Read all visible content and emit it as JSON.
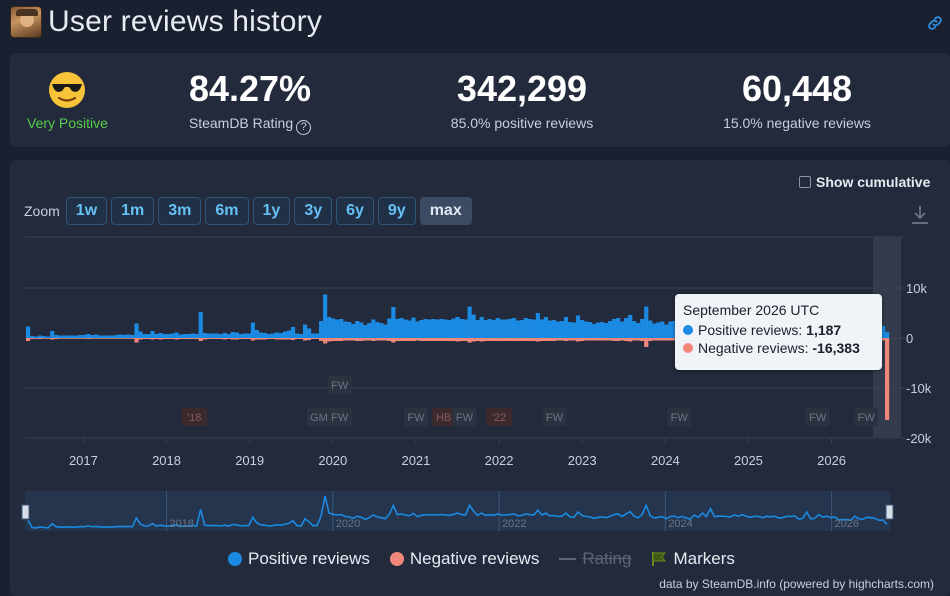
{
  "header": {
    "title": "User reviews history"
  },
  "stats": {
    "rating_word": "Very Positive",
    "rating_pct": "84.27%",
    "rating_label": "SteamDB Rating",
    "positive_count": "342,299",
    "positive_label": "85.0% positive reviews",
    "negative_count": "60,448",
    "negative_label": "15.0% negative reviews"
  },
  "chart": {
    "cumulative_label": "Show cumulative",
    "zoom_label": "Zoom",
    "zoom_buttons": [
      "1w",
      "1m",
      "3m",
      "6m",
      "1y",
      "3y",
      "6y",
      "9y",
      "max"
    ],
    "zoom_active": "max",
    "credit": "data by SteamDB.info (powered by highcharts.com)"
  },
  "tooltip": {
    "title": "September 2026 UTC",
    "pos_label": "Positive reviews:",
    "pos_value": "1,187",
    "neg_label": "Negative reviews:",
    "neg_value": "-16,383"
  },
  "legend": {
    "positive": "Positive reviews",
    "negative": "Negative reviews",
    "rating": "Rating",
    "markers": "Markers"
  },
  "colors": {
    "positive": "#1a8ae3",
    "negative": "#f0877a",
    "very_positive": "#57cb4e",
    "accent": "#66c0f4"
  },
  "chart_data": {
    "type": "bar",
    "x_range": [
      "2016-05",
      "2026-09"
    ],
    "x_ticks": [
      "2017",
      "2018",
      "2019",
      "2020",
      "2021",
      "2022",
      "2023",
      "2024",
      "2025",
      "2026"
    ],
    "y_ticks": [
      "10k",
      "0",
      "-10k",
      "-20k"
    ],
    "ylim": [
      -20000,
      20000
    ],
    "series": [
      {
        "name": "Positive reviews",
        "start": "2016-05",
        "values": [
          2300,
          400,
          300,
          500,
          400,
          300,
          1400,
          600,
          500,
          500,
          500,
          500,
          500,
          600,
          600,
          800,
          600,
          700,
          500,
          500,
          500,
          500,
          600,
          700,
          600,
          700,
          600,
          2900,
          1300,
          800,
          800,
          1400,
          800,
          1000,
          800,
          800,
          900,
          1100,
          700,
          800,
          800,
          900,
          800,
          5200,
          1000,
          900,
          900,
          900,
          800,
          1000,
          800,
          1200,
          1100,
          800,
          900,
          900,
          3100,
          1600,
          1100,
          1000,
          800,
          900,
          1100,
          1000,
          1300,
          1500,
          2200,
          900,
          800,
          2700,
          1900,
          900,
          900,
          3400,
          8700,
          4200,
          3900,
          3700,
          3800,
          3300,
          3200,
          2800,
          3400,
          3100,
          2600,
          3000,
          3700,
          3200,
          3000,
          2700,
          3900,
          6200,
          3800,
          4000,
          3700,
          3500,
          4100,
          3300,
          3600,
          3800,
          3700,
          3800,
          3700,
          3800,
          3700,
          3600,
          3900,
          4200,
          3800,
          3700,
          6300,
          4700,
          3600,
          4200,
          3600,
          3800,
          3600,
          4000,
          3700,
          3700,
          3800,
          4000,
          3500,
          3600,
          4000,
          3800,
          3700,
          5000,
          3700,
          4200,
          3500,
          3600,
          3300,
          3400,
          4200,
          3200,
          3100,
          4500,
          3600,
          3300,
          3200,
          2800,
          3100,
          3200,
          3000,
          3400,
          3800,
          4000,
          3300,
          4000,
          4600,
          3400,
          3000,
          3800,
          6300,
          3500,
          2900,
          3100,
          3300,
          2700,
          3300,
          3400,
          3000,
          3300,
          2900,
          2600,
          3700,
          3100,
          4200,
          3300,
          5400,
          3300,
          3400,
          3400,
          3300,
          3200,
          3700,
          3400,
          3800,
          3300,
          3100,
          3400,
          3300,
          3000,
          3400,
          3200,
          3400,
          2900,
          3000,
          3400,
          3300,
          3500,
          2600,
          2800,
          4500,
          2700,
          2800,
          3800,
          3100,
          3400,
          3000,
          3200,
          2400,
          2500,
          2500,
          2300,
          3400,
          2700,
          2600,
          3100,
          3000,
          2800,
          2300,
          2400,
          1187
        ]
      },
      {
        "name": "Negative reviews",
        "start": "2016-05",
        "values": [
          -600,
          -200,
          -100,
          -200,
          -100,
          -100,
          -300,
          -200,
          -100,
          -100,
          -100,
          -100,
          -100,
          -100,
          -100,
          -200,
          -100,
          -100,
          -100,
          -100,
          -100,
          -100,
          -100,
          -100,
          -100,
          -100,
          -100,
          -900,
          -300,
          -200,
          -200,
          -300,
          -200,
          -300,
          -200,
          -200,
          -200,
          -300,
          -200,
          -200,
          -200,
          -200,
          -200,
          -600,
          -300,
          -200,
          -200,
          -200,
          -200,
          -300,
          -200,
          -300,
          -300,
          -200,
          -200,
          -200,
          -500,
          -300,
          -300,
          -300,
          -200,
          -200,
          -300,
          -300,
          -300,
          -300,
          -400,
          -200,
          -200,
          -500,
          -400,
          -200,
          -200,
          -600,
          -1100,
          -700,
          -600,
          -600,
          -600,
          -500,
          -500,
          -500,
          -600,
          -600,
          -500,
          -500,
          -600,
          -500,
          -500,
          -500,
          -600,
          -900,
          -600,
          -600,
          -600,
          -600,
          -600,
          -500,
          -600,
          -600,
          -600,
          -600,
          -600,
          -600,
          -600,
          -600,
          -600,
          -700,
          -600,
          -600,
          -900,
          -700,
          -600,
          -700,
          -600,
          -600,
          -600,
          -600,
          -600,
          -600,
          -600,
          -600,
          -600,
          -600,
          -600,
          -600,
          -600,
          -700,
          -600,
          -600,
          -600,
          -600,
          -500,
          -500,
          -600,
          -500,
          -500,
          -700,
          -600,
          -500,
          -500,
          -500,
          -500,
          -500,
          -500,
          -500,
          -600,
          -600,
          -500,
          -600,
          -700,
          -500,
          -500,
          -600,
          -1800,
          -600,
          -500,
          -500,
          -500,
          -500,
          -500,
          -500,
          -500,
          -500,
          -500,
          -500,
          -600,
          -500,
          -600,
          -500,
          -800,
          -500,
          -500,
          -500,
          -500,
          -500,
          -600,
          -500,
          -600,
          -500,
          -500,
          -500,
          -500,
          -500,
          -500,
          -500,
          -500,
          -500,
          -500,
          -500,
          -500,
          -500,
          -500,
          -500,
          -700,
          -500,
          -500,
          -600,
          -500,
          -500,
          -500,
          -500,
          -500,
          -500,
          -500,
          -500,
          -600,
          -500,
          -500,
          -500,
          -500,
          -500,
          -500,
          -500,
          -16383
        ]
      }
    ],
    "markers": [
      {
        "label": "'18"
      },
      {
        "label": "GM"
      },
      {
        "label": "FW"
      },
      {
        "label": "FW"
      },
      {
        "label": "FW"
      },
      {
        "label": "HB"
      },
      {
        "label": "FW"
      },
      {
        "label": "'22"
      },
      {
        "label": "FW"
      },
      {
        "label": "FW"
      },
      {
        "label": "FW"
      },
      {
        "label": "FW"
      }
    ],
    "navigator_labels": [
      "2018",
      "2020",
      "2022",
      "2024",
      "2026"
    ]
  }
}
